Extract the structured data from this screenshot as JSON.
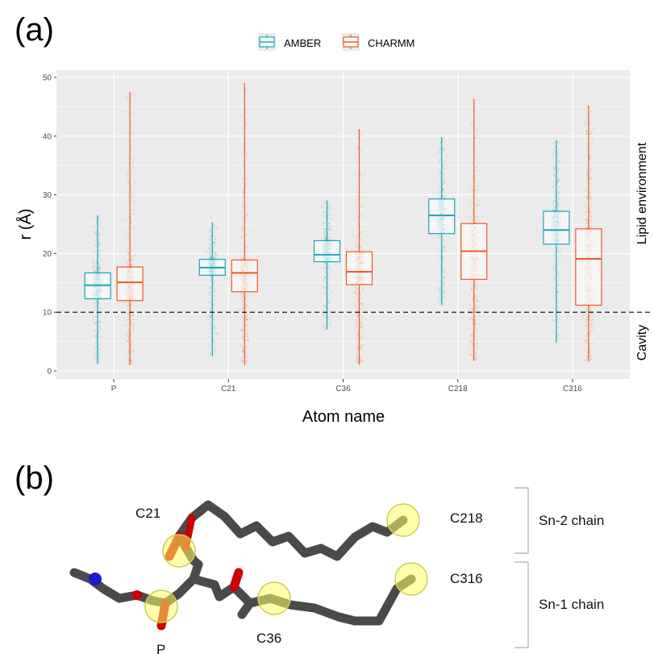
{
  "panel_labels": {
    "a": "(a)",
    "b": "(b)"
  },
  "colors": {
    "amber": "#1aa6b7",
    "charmm": "#f15a22",
    "panel_bg": "#ebebeb",
    "grid": "#ffffff"
  },
  "chart_data": {
    "type": "box",
    "xlabel": "Atom name",
    "ylabel": "r (Å)",
    "ylim": [
      0,
      50
    ],
    "yticks": [
      0,
      10,
      20,
      30,
      40,
      50
    ],
    "grid": true,
    "legend_position": "top",
    "categories": [
      "P",
      "C21",
      "C36",
      "C218",
      "C316"
    ],
    "series": [
      {
        "name": "AMBER",
        "color": "#1aa6b7",
        "boxes": [
          {
            "min": 1.2,
            "q1": 12.3,
            "median": 14.6,
            "q3": 16.7,
            "max": 26.5
          },
          {
            "min": 2.5,
            "q1": 16.3,
            "median": 17.6,
            "q3": 19.0,
            "max": 25.3
          },
          {
            "min": 7.0,
            "q1": 18.6,
            "median": 19.8,
            "q3": 22.2,
            "max": 29.0
          },
          {
            "min": 11.2,
            "q1": 23.4,
            "median": 26.5,
            "q3": 29.3,
            "max": 39.8
          },
          {
            "min": 4.8,
            "q1": 21.6,
            "median": 24.0,
            "q3": 27.2,
            "max": 39.3
          }
        ]
      },
      {
        "name": "CHARMM",
        "color": "#f15a22",
        "boxes": [
          {
            "min": 1.0,
            "q1": 12.0,
            "median": 15.1,
            "q3": 17.7,
            "max": 47.5
          },
          {
            "min": 1.0,
            "q1": 13.5,
            "median": 16.7,
            "q3": 18.9,
            "max": 49.0
          },
          {
            "min": 1.1,
            "q1": 14.7,
            "median": 16.9,
            "q3": 20.3,
            "max": 41.2
          },
          {
            "min": 1.7,
            "q1": 15.6,
            "median": 20.4,
            "q3": 25.1,
            "max": 46.3
          },
          {
            "min": 1.6,
            "q1": 11.2,
            "median": 19.1,
            "q3": 24.2,
            "max": 45.2
          }
        ]
      }
    ],
    "reference_line": {
      "y": 10,
      "style": "dashed"
    },
    "region_labels": {
      "above": "Lipid environment",
      "below": "Cavity"
    }
  },
  "molecule": {
    "atom_labels": {
      "c21": "C21",
      "c218": "C218",
      "c316": "C316",
      "c36": "C36",
      "p": "P"
    },
    "chain_labels": {
      "sn2": "Sn-2 chain",
      "sn1": "Sn-1 chain"
    }
  }
}
